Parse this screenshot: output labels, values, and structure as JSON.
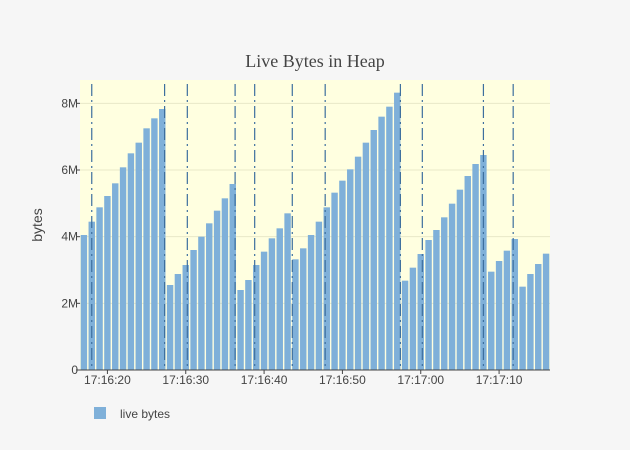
{
  "chart_data": {
    "type": "bar",
    "title": "Live Bytes in Heap",
    "xlabel": "",
    "ylabel": "bytes",
    "x_start": "17:16:16.5",
    "x_step_seconds": 1,
    "x_ticks": [
      "17:16:20",
      "17:16:30",
      "17:16:40",
      "17:16:50",
      "17:17:00",
      "17:17:10"
    ],
    "y_ticks": [
      {
        "value": 0,
        "label": "0"
      },
      {
        "value": 2000000,
        "label": "2M"
      },
      {
        "value": 4000000,
        "label": "4M"
      },
      {
        "value": 6000000,
        "label": "6M"
      },
      {
        "value": 8000000,
        "label": "8M"
      }
    ],
    "ylim": [
      0,
      8700000
    ],
    "gc_markers": [
      "17:16:18",
      "17:16:27.3",
      "17:16:30.2",
      "17:16:36.3",
      "17:16:38.8",
      "17:16:43.6",
      "17:16:47.8",
      "17:16:57.4",
      "17:17:00.2",
      "17:17:08",
      "17:17:11.8"
    ],
    "series": [
      {
        "name": "live bytes",
        "values": [
          4050000,
          4450000,
          4880000,
          5220000,
          5600000,
          6080000,
          6500000,
          6820000,
          7250000,
          7550000,
          7830000,
          2550000,
          2880000,
          3150000,
          3600000,
          4000000,
          4400000,
          4780000,
          5150000,
          5580000,
          2400000,
          2700000,
          3150000,
          3550000,
          3950000,
          4250000,
          4700000,
          3320000,
          3650000,
          4050000,
          4450000,
          4880000,
          5320000,
          5680000,
          6020000,
          6400000,
          6820000,
          7200000,
          7600000,
          7900000,
          8320000,
          2680000,
          3070000,
          3480000,
          3900000,
          4200000,
          4580000,
          4990000,
          5410000,
          5820000,
          6180000,
          6450000,
          2950000,
          3270000,
          3580000,
          3930000,
          2500000,
          2880000,
          3180000,
          3490000
        ]
      }
    ],
    "legend_position": "bottom-left",
    "grid": true,
    "plot_background": "#ffffe0",
    "bar_color": "#7fb0d9",
    "marker_color": "#3d6f9e"
  }
}
